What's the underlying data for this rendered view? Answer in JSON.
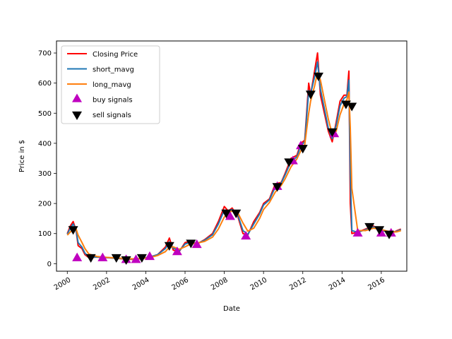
{
  "chart_data": {
    "type": "line",
    "title": "",
    "xlabel": "Date",
    "ylabel": "Price in $",
    "xlim": [
      1999.45,
      2017.3
    ],
    "ylim": [
      -25,
      740
    ],
    "x_ticks": [
      2000,
      2002,
      2004,
      2006,
      2008,
      2010,
      2012,
      2014,
      2016
    ],
    "x_tick_labels": [
      "2000",
      "2002",
      "2004",
      "2006",
      "2008",
      "2010",
      "2012",
      "2014",
      "2016"
    ],
    "y_ticks": [
      0,
      100,
      200,
      300,
      400,
      500,
      600,
      700
    ],
    "y_tick_labels": [
      "0",
      "100",
      "200",
      "300",
      "400",
      "500",
      "600",
      "700"
    ],
    "grid": false,
    "legend_position": "top-left",
    "series": [
      {
        "name": "Closing Price",
        "color": "#ff0000",
        "points": [
          [
            2000.0,
            100
          ],
          [
            2000.15,
            125
          ],
          [
            2000.3,
            140
          ],
          [
            2000.45,
            110
          ],
          [
            2000.55,
            60
          ],
          [
            2000.75,
            50
          ],
          [
            2000.9,
            30
          ],
          [
            2001.1,
            20
          ],
          [
            2001.5,
            22
          ],
          [
            2002.0,
            20
          ],
          [
            2002.5,
            18
          ],
          [
            2003.0,
            15
          ],
          [
            2003.4,
            14
          ],
          [
            2003.8,
            18
          ],
          [
            2004.2,
            22
          ],
          [
            2004.6,
            30
          ],
          [
            2005.0,
            55
          ],
          [
            2005.2,
            85
          ],
          [
            2005.4,
            45
          ],
          [
            2005.7,
            40
          ],
          [
            2006.0,
            70
          ],
          [
            2006.3,
            75
          ],
          [
            2006.6,
            65
          ],
          [
            2007.0,
            80
          ],
          [
            2007.4,
            100
          ],
          [
            2007.7,
            140
          ],
          [
            2008.0,
            190
          ],
          [
            2008.2,
            175
          ],
          [
            2008.4,
            185
          ],
          [
            2008.7,
            155
          ],
          [
            2008.95,
            100
          ],
          [
            2009.2,
            95
          ],
          [
            2009.5,
            140
          ],
          [
            2009.8,
            170
          ],
          [
            2010.0,
            200
          ],
          [
            2010.3,
            215
          ],
          [
            2010.6,
            265
          ],
          [
            2010.9,
            270
          ],
          [
            2011.1,
            300
          ],
          [
            2011.4,
            350
          ],
          [
            2011.7,
            360
          ],
          [
            2011.9,
            400
          ],
          [
            2012.1,
            410
          ],
          [
            2012.3,
            600
          ],
          [
            2012.4,
            560
          ],
          [
            2012.6,
            640
          ],
          [
            2012.75,
            700
          ],
          [
            2012.9,
            560
          ],
          [
            2013.1,
            500
          ],
          [
            2013.3,
            440
          ],
          [
            2013.5,
            405
          ],
          [
            2013.7,
            470
          ],
          [
            2013.9,
            540
          ],
          [
            2014.1,
            560
          ],
          [
            2014.25,
            560
          ],
          [
            2014.35,
            640
          ],
          [
            2014.42,
            200
          ],
          [
            2014.5,
            100
          ],
          [
            2014.8,
            105
          ],
          [
            2015.2,
            115
          ],
          [
            2015.6,
            125
          ],
          [
            2015.9,
            110
          ],
          [
            2016.2,
            108
          ],
          [
            2016.5,
            100
          ],
          [
            2016.8,
            110
          ],
          [
            2017.0,
            115
          ]
        ]
      },
      {
        "name": "short_mavg",
        "color": "#1f77b4",
        "points": [
          [
            2000.0,
            98
          ],
          [
            2000.15,
            118
          ],
          [
            2000.3,
            132
          ],
          [
            2000.45,
            112
          ],
          [
            2000.55,
            70
          ],
          [
            2000.75,
            55
          ],
          [
            2000.9,
            35
          ],
          [
            2001.1,
            22
          ],
          [
            2001.5,
            22
          ],
          [
            2002.0,
            20
          ],
          [
            2002.5,
            18
          ],
          [
            2003.0,
            16
          ],
          [
            2003.4,
            15
          ],
          [
            2003.8,
            18
          ],
          [
            2004.2,
            22
          ],
          [
            2004.6,
            30
          ],
          [
            2005.0,
            50
          ],
          [
            2005.2,
            72
          ],
          [
            2005.4,
            52
          ],
          [
            2005.7,
            42
          ],
          [
            2006.0,
            65
          ],
          [
            2006.3,
            72
          ],
          [
            2006.6,
            66
          ],
          [
            2007.0,
            78
          ],
          [
            2007.4,
            96
          ],
          [
            2007.7,
            132
          ],
          [
            2008.0,
            178
          ],
          [
            2008.2,
            176
          ],
          [
            2008.4,
            180
          ],
          [
            2008.7,
            160
          ],
          [
            2008.95,
            110
          ],
          [
            2009.2,
            97
          ],
          [
            2009.5,
            132
          ],
          [
            2009.8,
            165
          ],
          [
            2010.0,
            195
          ],
          [
            2010.3,
            212
          ],
          [
            2010.6,
            255
          ],
          [
            2010.9,
            268
          ],
          [
            2011.1,
            295
          ],
          [
            2011.4,
            340
          ],
          [
            2011.7,
            355
          ],
          [
            2011.9,
            392
          ],
          [
            2012.1,
            405
          ],
          [
            2012.3,
            575
          ],
          [
            2012.4,
            565
          ],
          [
            2012.6,
            620
          ],
          [
            2012.75,
            670
          ],
          [
            2012.9,
            580
          ],
          [
            2013.1,
            515
          ],
          [
            2013.3,
            450
          ],
          [
            2013.5,
            415
          ],
          [
            2013.7,
            460
          ],
          [
            2013.9,
            525
          ],
          [
            2014.1,
            550
          ],
          [
            2014.25,
            555
          ],
          [
            2014.35,
            610
          ],
          [
            2014.42,
            300
          ],
          [
            2014.5,
            110
          ],
          [
            2014.8,
            104
          ],
          [
            2015.2,
            113
          ],
          [
            2015.6,
            122
          ],
          [
            2015.9,
            112
          ],
          [
            2016.2,
            108
          ],
          [
            2016.5,
            102
          ],
          [
            2016.8,
            108
          ],
          [
            2017.0,
            113
          ]
        ]
      },
      {
        "name": "long_mavg",
        "color": "#ff7f0e",
        "points": [
          [
            2000.0,
            95
          ],
          [
            2000.15,
            105
          ],
          [
            2000.3,
            115
          ],
          [
            2000.45,
            115
          ],
          [
            2000.55,
            95
          ],
          [
            2000.75,
            70
          ],
          [
            2000.9,
            50
          ],
          [
            2001.1,
            32
          ],
          [
            2001.5,
            24
          ],
          [
            2002.0,
            21
          ],
          [
            2002.5,
            19
          ],
          [
            2003.0,
            17
          ],
          [
            2003.4,
            16
          ],
          [
            2003.8,
            17
          ],
          [
            2004.2,
            20
          ],
          [
            2004.6,
            27
          ],
          [
            2005.0,
            40
          ],
          [
            2005.2,
            55
          ],
          [
            2005.4,
            56
          ],
          [
            2005.7,
            48
          ],
          [
            2006.0,
            56
          ],
          [
            2006.3,
            66
          ],
          [
            2006.6,
            68
          ],
          [
            2007.0,
            74
          ],
          [
            2007.4,
            88
          ],
          [
            2007.7,
            115
          ],
          [
            2008.0,
            155
          ],
          [
            2008.2,
            168
          ],
          [
            2008.4,
            175
          ],
          [
            2008.7,
            168
          ],
          [
            2008.95,
            135
          ],
          [
            2009.2,
            108
          ],
          [
            2009.5,
            118
          ],
          [
            2009.8,
            150
          ],
          [
            2010.0,
            180
          ],
          [
            2010.3,
            203
          ],
          [
            2010.6,
            238
          ],
          [
            2010.9,
            260
          ],
          [
            2011.1,
            282
          ],
          [
            2011.4,
            322
          ],
          [
            2011.7,
            348
          ],
          [
            2011.9,
            375
          ],
          [
            2012.1,
            395
          ],
          [
            2012.3,
            500
          ],
          [
            2012.4,
            540
          ],
          [
            2012.6,
            590
          ],
          [
            2012.75,
            635
          ],
          [
            2012.9,
            610
          ],
          [
            2013.1,
            545
          ],
          [
            2013.3,
            480
          ],
          [
            2013.5,
            430
          ],
          [
            2013.7,
            440
          ],
          [
            2013.9,
            495
          ],
          [
            2014.1,
            530
          ],
          [
            2014.25,
            545
          ],
          [
            2014.35,
            570
          ],
          [
            2014.42,
            450
          ],
          [
            2014.5,
            250
          ],
          [
            2014.8,
            110
          ],
          [
            2015.2,
            110
          ],
          [
            2015.6,
            118
          ],
          [
            2015.9,
            115
          ],
          [
            2016.2,
            110
          ],
          [
            2016.5,
            105
          ],
          [
            2016.8,
            106
          ],
          [
            2017.0,
            110
          ]
        ]
      }
    ],
    "markers": [
      {
        "name": "buy signals",
        "shape": "triangle-up",
        "color": "#bf00bf",
        "points": [
          [
            2000.5,
            18
          ],
          [
            2001.8,
            18
          ],
          [
            2003.0,
            12
          ],
          [
            2003.5,
            12
          ],
          [
            2004.2,
            22
          ],
          [
            2005.6,
            38
          ],
          [
            2006.6,
            62
          ],
          [
            2008.3,
            155
          ],
          [
            2009.1,
            90
          ],
          [
            2010.7,
            255
          ],
          [
            2011.5,
            340
          ],
          [
            2011.9,
            390
          ],
          [
            2013.6,
            430
          ],
          [
            2014.8,
            100
          ],
          [
            2016.0,
            100
          ],
          [
            2016.5,
            100
          ]
        ]
      },
      {
        "name": "sell signals",
        "shape": "triangle-down",
        "color": "#000000",
        "points": [
          [
            2000.3,
            115
          ],
          [
            2001.2,
            22
          ],
          [
            2002.5,
            22
          ],
          [
            2003.0,
            15
          ],
          [
            2003.8,
            22
          ],
          [
            2005.2,
            62
          ],
          [
            2006.3,
            70
          ],
          [
            2008.1,
            170
          ],
          [
            2008.6,
            170
          ],
          [
            2010.7,
            258
          ],
          [
            2011.3,
            340
          ],
          [
            2012.0,
            385
          ],
          [
            2012.4,
            565
          ],
          [
            2012.8,
            625
          ],
          [
            2013.5,
            440
          ],
          [
            2014.2,
            532
          ],
          [
            2014.5,
            525
          ],
          [
            2015.4,
            125
          ],
          [
            2015.9,
            115
          ],
          [
            2016.4,
            100
          ]
        ]
      }
    ],
    "legend": [
      {
        "label": "Closing Price",
        "kind": "line",
        "color": "#ff0000"
      },
      {
        "label": "short_mavg",
        "kind": "line",
        "color": "#1f77b4"
      },
      {
        "label": "long_mavg",
        "kind": "line",
        "color": "#ff7f0e"
      },
      {
        "label": "buy signals",
        "kind": "triangle-up",
        "color": "#bf00bf"
      },
      {
        "label": "sell signals",
        "kind": "triangle-down",
        "color": "#000000"
      }
    ]
  }
}
